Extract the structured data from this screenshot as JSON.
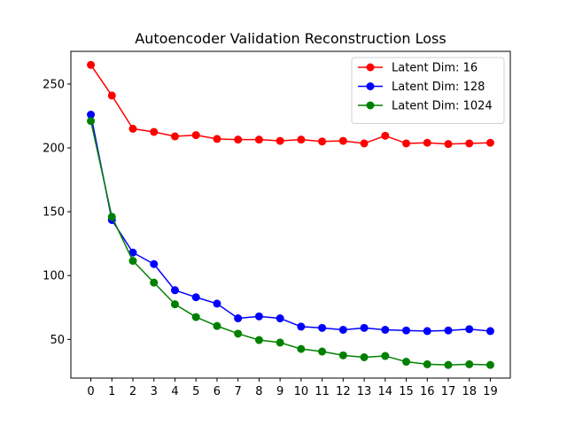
{
  "chart_data": {
    "type": "line",
    "title": "Autoencoder Validation Reconstruction Loss",
    "xlabel": "",
    "ylabel": "",
    "x": [
      0,
      1,
      2,
      3,
      4,
      5,
      6,
      7,
      8,
      9,
      10,
      11,
      12,
      13,
      14,
      15,
      16,
      17,
      18,
      19
    ],
    "xlim": [
      -0.95,
      19.95
    ],
    "ylim": [
      19.7,
      275.6
    ],
    "yticks": [
      50,
      100,
      150,
      200,
      250
    ],
    "grid": false,
    "legend_position": "top-right",
    "series": [
      {
        "name": "Latent Dim: 16",
        "color": "#ff0000",
        "values": [
          265,
          241,
          215,
          212.5,
          209,
          210,
          207,
          206.5,
          206.5,
          205.5,
          206.5,
          205,
          205.5,
          203.5,
          209.5,
          203.5,
          204,
          203,
          203.5,
          204
        ]
      },
      {
        "name": "Latent Dim: 128",
        "color": "#0000ff",
        "values": [
          226,
          143.5,
          118,
          109,
          88.5,
          83,
          78,
          66.5,
          68,
          66.5,
          60,
          59,
          57.5,
          59,
          57.5,
          57,
          56.5,
          57,
          58,
          56.5
        ]
      },
      {
        "name": "Latent Dim: 1024",
        "color": "#008000",
        "values": [
          221,
          146,
          111.5,
          94.5,
          77.5,
          67.5,
          60.5,
          54.5,
          49.5,
          47.5,
          42.5,
          40.5,
          37.5,
          36,
          37,
          32.5,
          30.5,
          30,
          30.5,
          30
        ]
      }
    ]
  }
}
